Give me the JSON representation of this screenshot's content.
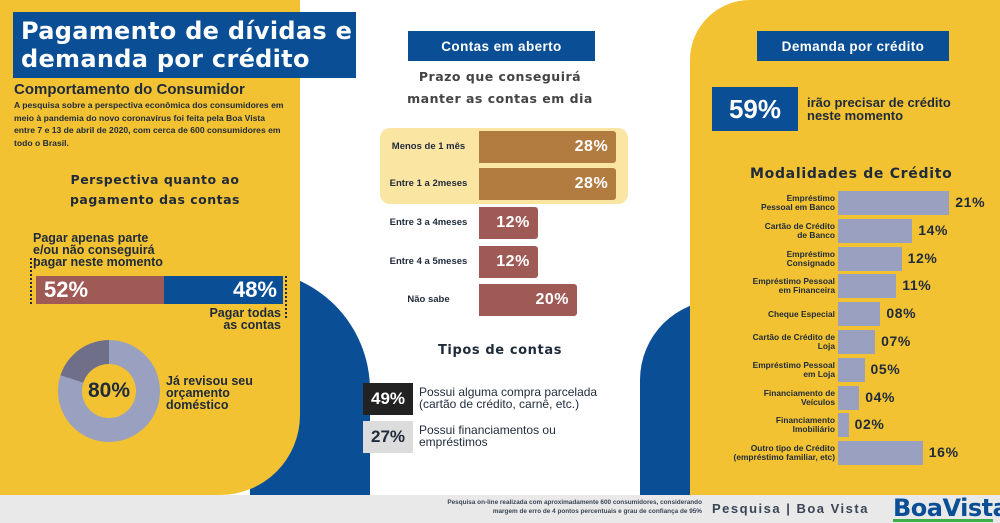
{
  "left": {
    "title_line1": "Pagamento de dívidas e",
    "title_line2": "demanda por crédito",
    "subtitle": "Comportamento do Consumidor",
    "intro_lines": [
      "A pesquisa sobre a perspectiva econômica dos consumidores em",
      "meio à pandemia do novo coronavírus foi feita pela Boa Vista",
      "entre 7 e 13 de abril de 2020, com cerca de 600 consumidores em",
      "todo o Brasil."
    ],
    "perspective_title_line1": "Perspectiva quanto ao",
    "perspective_title_line2": "pagamento das contas",
    "partial_label_lines": [
      "Pagar apenas parte",
      "e/ou não conseguirá",
      "pagar neste momento"
    ],
    "partial_pct": "52%",
    "full_pct": "48%",
    "full_label_lines": [
      "Pagar todas",
      "as contas"
    ],
    "donut_value": 0.8,
    "donut_pct": "80%",
    "donut_label_lines": [
      "Já revisou seu",
      "orçamento",
      "doméstico"
    ],
    "colors": {
      "yellow": "#f2c232",
      "blue": "#0a4f96",
      "rose": "#9f5a56",
      "donut_light": "#9aa0bf",
      "donut_dark": "#6f6f8a"
    }
  },
  "middle": {
    "header": "Contas em aberto",
    "prazo_title_line1": "Prazo que conseguirá",
    "prazo_title_line2": "manter as contas em dia",
    "bars": [
      {
        "label_lines": [
          "Menos de 1 mês"
        ],
        "value": 28,
        "text": "28%",
        "color": "#b27b3f"
      },
      {
        "label_lines": [
          "Entre 1 a 2",
          "meses"
        ],
        "value": 28,
        "text": "28%",
        "color": "#b27b3f"
      },
      {
        "label_lines": [
          "Entre 3 a 4",
          "meses"
        ],
        "value": 12,
        "text": "12%",
        "color": "#9f5a56"
      },
      {
        "label_lines": [
          "Entre 4 a 5",
          "meses"
        ],
        "value": 12,
        "text": "12%",
        "color": "#9f5a56"
      },
      {
        "label_lines": [
          "Não sabe"
        ],
        "value": 20,
        "text": "20%",
        "color": "#9f5a56"
      }
    ],
    "tipos_title": "Tipos de contas",
    "tipos": [
      {
        "pct": "49%",
        "lines": [
          "Possui alguma compra parcelada",
          "(cartão de crédito, carnê, etc.)"
        ],
        "bg": "#222222",
        "fg": "#ffffff"
      },
      {
        "pct": "27%",
        "lines": [
          "Possui financiamentos ou",
          "empréstimos"
        ],
        "bg": "#dcdcdc",
        "fg": "#1f2a3a"
      }
    ]
  },
  "right": {
    "header": "Demanda por crédito",
    "big_pct": "59%",
    "big_text_lines": [
      "irão precisar de crédito",
      "neste momento"
    ],
    "mod_title": "Modalidades de Crédito",
    "modalities": [
      {
        "label_lines": [
          "Empréstimo",
          "Pessoal em Banco"
        ],
        "value": 21,
        "text": "21%"
      },
      {
        "label_lines": [
          "Cartão de Crédito",
          "de Banco"
        ],
        "value": 14,
        "text": "14%"
      },
      {
        "label_lines": [
          "Empréstimo",
          "Consignado"
        ],
        "value": 12,
        "text": "12%"
      },
      {
        "label_lines": [
          "Empréstimo Pessoal",
          "em Financeira"
        ],
        "value": 11,
        "text": "11%"
      },
      {
        "label_lines": [
          "Cheque Especial"
        ],
        "value": 8,
        "text": "08%"
      },
      {
        "label_lines": [
          "Cartão de Crédito de",
          "Loja"
        ],
        "value": 7,
        "text": "07%"
      },
      {
        "label_lines": [
          "Empréstimo Pessoal",
          "em Loja"
        ],
        "value": 5,
        "text": "05%"
      },
      {
        "label_lines": [
          "Financiamento de",
          "Veículos"
        ],
        "value": 4,
        "text": "04%"
      },
      {
        "label_lines": [
          "Financiamento",
          "Imobiliário"
        ],
        "value": 2,
        "text": "02%"
      },
      {
        "label_lines": [
          "Outro tipo de Crédito",
          "(empréstimo familiar, etc)"
        ],
        "value": 16,
        "text": "16%"
      }
    ]
  },
  "footer": {
    "note_line1": "Pesquisa on-line realizada com aproximadamente 600 consumidores, considerando",
    "note_line2": "margem de erro de 4 pontos percentuais e grau de confiança de 95%",
    "brand_text": "Pesquisa | Boa Vista",
    "logo_text": "BoaVista"
  }
}
